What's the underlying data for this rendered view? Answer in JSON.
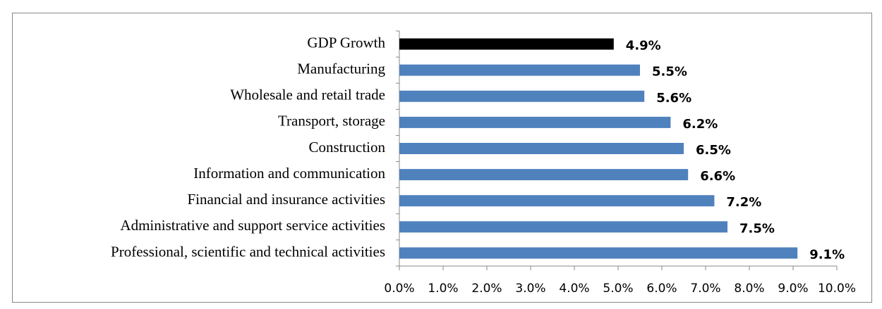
{
  "chart_data": {
    "type": "hbar",
    "categories": [
      "GDP Growth",
      "Manufacturing",
      "Wholesale and retail trade",
      "Transport, storage",
      "Construction",
      "Information and communication",
      "Financial and insurance activities",
      "Administrative and support service activities",
      "Professional, scientific and technical activities"
    ],
    "values": [
      4.9,
      5.5,
      5.6,
      6.2,
      6.5,
      6.6,
      7.2,
      7.5,
      9.1
    ],
    "value_labels": [
      "4.9%",
      "5.5%",
      "5.6%",
      "6.2%",
      "6.5%",
      "6.6%",
      "7.2%",
      "7.5%",
      "9.1%"
    ],
    "colors": [
      "#000000",
      "#4f81bd",
      "#4f81bd",
      "#4f81bd",
      "#4f81bd",
      "#4f81bd",
      "#4f81bd",
      "#4f81bd",
      "#4f81bd"
    ],
    "xlim": [
      0,
      10
    ],
    "xticks": [
      {
        "value": 0,
        "label": "0.0%"
      },
      {
        "value": 1,
        "label": "1.0%"
      },
      {
        "value": 2,
        "label": "2.0%"
      },
      {
        "value": 3,
        "label": "3.0%"
      },
      {
        "value": 4,
        "label": "4.0%"
      },
      {
        "value": 5,
        "label": "5.0%"
      },
      {
        "value": 6,
        "label": "6.0%"
      },
      {
        "value": 7,
        "label": "7.0%"
      },
      {
        "value": 8,
        "label": "8.0%"
      },
      {
        "value": 9,
        "label": "9.0%"
      },
      {
        "value": 10,
        "label": "10.0%"
      }
    ],
    "grid": false
  }
}
